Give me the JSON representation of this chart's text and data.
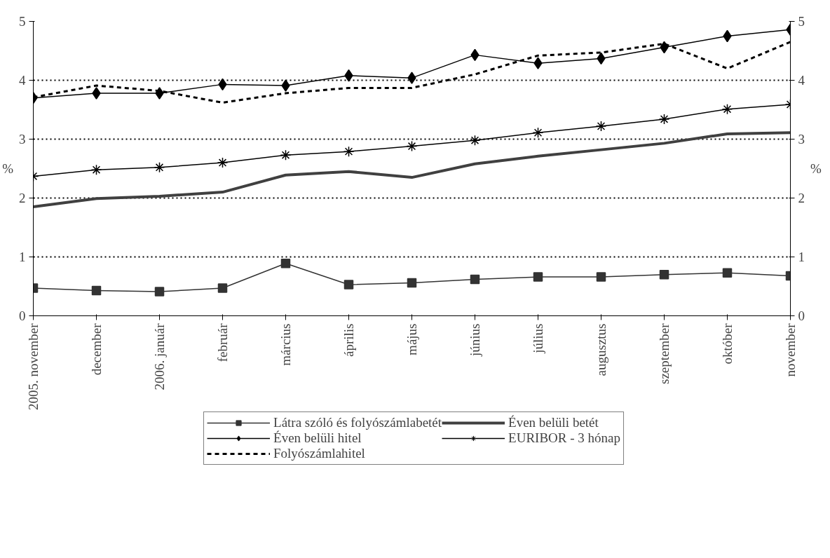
{
  "chart_data": {
    "type": "line",
    "ylabel": "%",
    "y2label": "%",
    "categories": [
      "2005. november",
      "december",
      "2006. január",
      "február",
      "március",
      "április",
      "május",
      "június",
      "július",
      "augusztus",
      "szeptember",
      "október",
      "november"
    ],
    "series": [
      {
        "name": "Látra szóló és folyószámlabetét",
        "color": "#333333",
        "marker": "square",
        "line_style": "solid",
        "values": [
          0.47,
          0.43,
          0.41,
          0.47,
          0.89,
          0.53,
          0.56,
          0.62,
          0.66,
          0.66,
          0.7,
          0.73,
          0.68
        ]
      },
      {
        "name": "Éven belüli betét",
        "color": "#404040",
        "marker": "none",
        "line_style": "solid",
        "values": [
          1.85,
          1.99,
          2.03,
          2.1,
          2.39,
          2.45,
          2.35,
          2.58,
          2.71,
          2.82,
          2.93,
          3.09,
          3.11
        ]
      },
      {
        "name": "Éven belüli hitel",
        "color": "#000000",
        "marker": "diamond",
        "line_style": "solid",
        "values": [
          3.7,
          3.78,
          3.78,
          3.93,
          3.91,
          4.08,
          4.04,
          4.43,
          4.29,
          4.37,
          4.56,
          4.75,
          4.86
        ]
      },
      {
        "name": "EURIBOR - 3 hónap",
        "color": "#000000",
        "marker": "cross",
        "line_style": "solid",
        "values": [
          2.37,
          2.48,
          2.52,
          2.6,
          2.73,
          2.79,
          2.88,
          2.98,
          3.11,
          3.22,
          3.34,
          3.51,
          3.59
        ]
      },
      {
        "name": "Folyószámlahitel",
        "color": "#000000",
        "marker": "none",
        "line_style": "dashed",
        "values": [
          3.71,
          3.91,
          3.82,
          3.62,
          3.78,
          3.87,
          3.87,
          4.1,
          4.42,
          4.47,
          4.62,
          4.2,
          4.65
        ]
      }
    ],
    "ylim": [
      0,
      5
    ],
    "yticks": [
      0,
      1,
      2,
      3,
      4,
      5
    ],
    "y2lim": [
      0,
      5
    ],
    "y2ticks": [
      0,
      1,
      2,
      3,
      4,
      5
    ],
    "grid": "y",
    "legend": "bottom"
  }
}
